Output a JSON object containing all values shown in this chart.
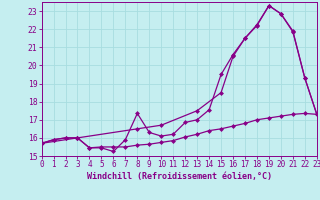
{
  "xlabel": "Windchill (Refroidissement éolien,°C)",
  "background_color": "#c5eef0",
  "grid_color": "#a8dde0",
  "line_color": "#880088",
  "x_ticks": [
    0,
    1,
    2,
    3,
    4,
    5,
    6,
    7,
    8,
    9,
    10,
    11,
    12,
    13,
    14,
    15,
    16,
    17,
    18,
    19,
    20,
    21,
    22,
    23
  ],
  "y_ticks": [
    15,
    16,
    17,
    18,
    19,
    20,
    21,
    22,
    23
  ],
  "xlim": [
    0,
    23
  ],
  "ylim": [
    15.0,
    23.5
  ],
  "line1_x": [
    0,
    1,
    2,
    3,
    4,
    5,
    6,
    7,
    8,
    9,
    10,
    11,
    12,
    13,
    14,
    15,
    16,
    17,
    18,
    19,
    20,
    21,
    22,
    23
  ],
  "line1_y": [
    15.7,
    15.9,
    16.0,
    16.0,
    15.45,
    15.45,
    15.25,
    15.9,
    17.35,
    16.3,
    16.1,
    16.2,
    16.85,
    17.0,
    17.55,
    19.5,
    20.6,
    21.5,
    22.25,
    23.3,
    22.85,
    21.85,
    19.3,
    17.3
  ],
  "line2_x": [
    0,
    1,
    2,
    3,
    4,
    5,
    6,
    7,
    8,
    9,
    10,
    11,
    12,
    13,
    14,
    15,
    16,
    17,
    18,
    19,
    20,
    21,
    22,
    23
  ],
  "line2_y": [
    15.7,
    15.9,
    16.0,
    16.0,
    15.45,
    15.5,
    15.5,
    15.5,
    15.6,
    15.65,
    15.75,
    15.85,
    16.05,
    16.2,
    16.4,
    16.5,
    16.65,
    16.8,
    17.0,
    17.1,
    17.2,
    17.3,
    17.35,
    17.3
  ],
  "line3_x": [
    0,
    3,
    8,
    10,
    13,
    15,
    16,
    17,
    18,
    19,
    20,
    21,
    22,
    23
  ],
  "line3_y": [
    15.7,
    16.0,
    16.5,
    16.7,
    17.5,
    18.5,
    20.5,
    21.5,
    22.2,
    23.3,
    22.85,
    21.9,
    19.3,
    17.3
  ],
  "markersize": 2.5,
  "linewidth": 0.9,
  "tick_fontsize": 5.5,
  "xlabel_fontsize": 6.0
}
